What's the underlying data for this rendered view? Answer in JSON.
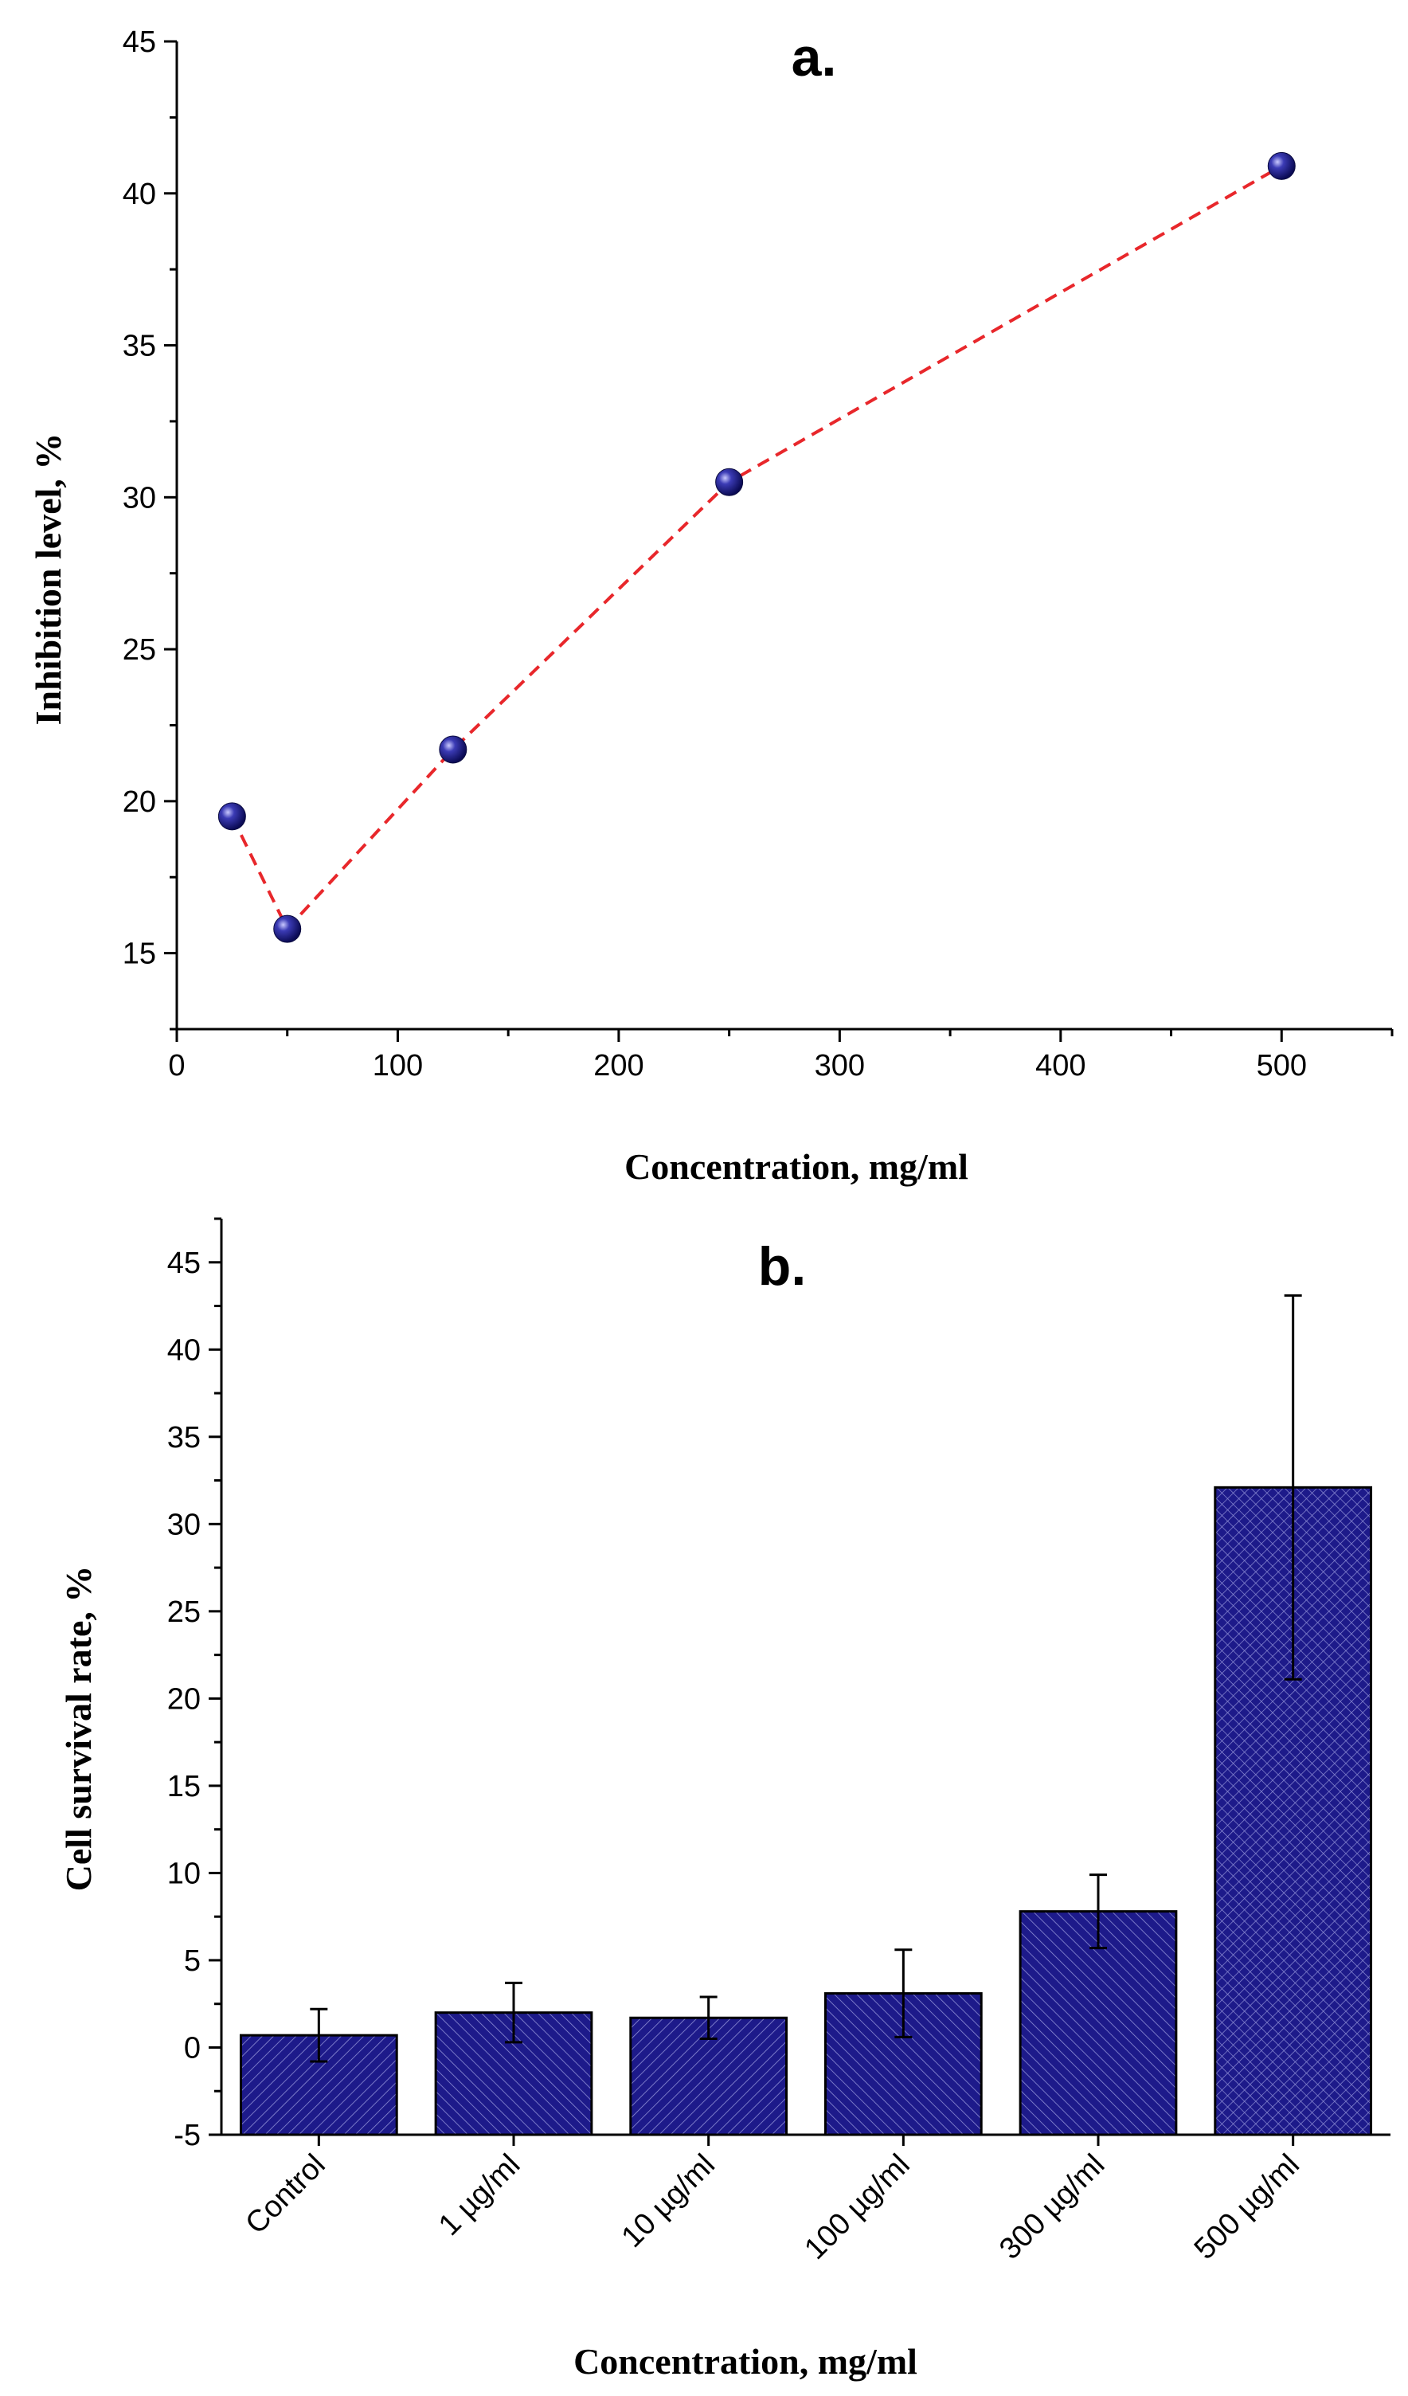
{
  "chart_data": [
    {
      "type": "line",
      "panel_label": "a.",
      "xlabel": "Concentration, mg/ml",
      "ylabel": "Inhibition level,  %",
      "xlim": [
        0,
        550
      ],
      "ylim": [
        12.5,
        45
      ],
      "xticks": [
        0,
        100,
        200,
        300,
        400,
        500
      ],
      "yticks": [
        15,
        20,
        25,
        30,
        35,
        40,
        45
      ],
      "x": [
        25,
        50,
        125,
        250,
        500
      ],
      "y": [
        19.5,
        15.8,
        21.7,
        30.5,
        40.9
      ],
      "line_color": "#e8272b",
      "line_style": "dashed",
      "marker_color": "#1a1a8c",
      "grid": false
    },
    {
      "type": "bar",
      "panel_label": "b.",
      "xlabel": "Concentration, mg/ml",
      "ylabel": "Cell survival rate, %",
      "ylim": [
        -5,
        47.5
      ],
      "yticks": [
        -5,
        0,
        5,
        10,
        15,
        20,
        25,
        30,
        35,
        40,
        45
      ],
      "categories": [
        "Control",
        "1 µg/ml",
        "10 µg/ml",
        "100 µg/ml",
        "300 µg/ml",
        "500 µg/ml"
      ],
      "values": [
        0.7,
        2.0,
        1.7,
        3.1,
        7.8,
        32.1
      ],
      "errors": [
        1.5,
        1.7,
        1.2,
        2.5,
        2.1,
        11.0
      ],
      "bar_color": "#1d1a8a",
      "grid": false
    }
  ]
}
